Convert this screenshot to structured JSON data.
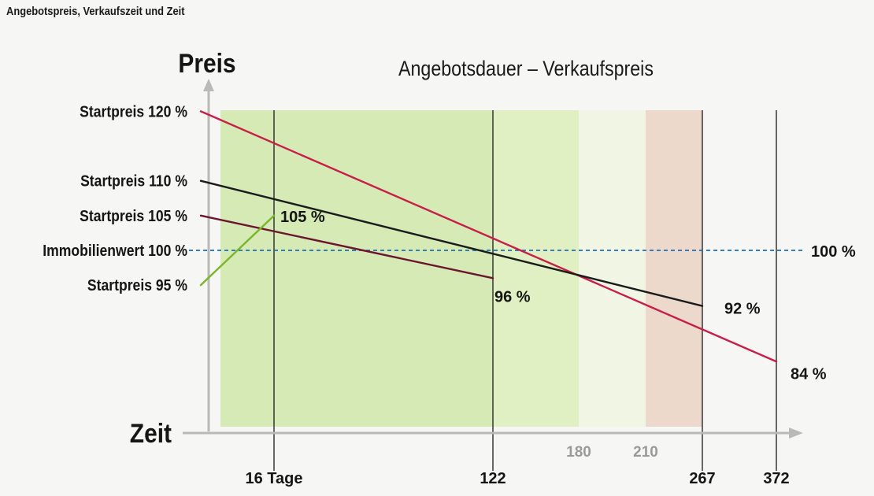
{
  "page_title": "Angebotspreis, Verkaufszeit und Zeit",
  "chart_data": {
    "type": "line",
    "title": "Angebotsdauer – Verkaufspreis",
    "ylabel": "Preis",
    "xlabel": "Zeit",
    "ylim": [
      80,
      122
    ],
    "x_ticks": [
      {
        "value": 16,
        "label": "16 Tage",
        "style": "bold"
      },
      {
        "value": 122,
        "label": "122",
        "style": "bold"
      },
      {
        "value": 180,
        "label": "180",
        "style": "muted"
      },
      {
        "value": 210,
        "label": "210",
        "style": "muted"
      },
      {
        "value": 267,
        "label": "267",
        "style": "bold"
      },
      {
        "value": 372,
        "label": "372",
        "style": "bold"
      }
    ],
    "y_labels": [
      {
        "value": 120,
        "label": "Startpreis 120 %"
      },
      {
        "value": 110,
        "label": "Startpreis 110 %"
      },
      {
        "value": 105,
        "label": "Startpreis 105 %"
      },
      {
        "value": 100,
        "label": "Immobilienwert 100 %"
      },
      {
        "value": 95,
        "label": "Startpreis 95 %"
      }
    ],
    "reference_line": {
      "value": 100,
      "label": "100 %",
      "color": "#1e6fb0",
      "style": "dashed"
    },
    "regions": [
      {
        "from": 16,
        "to": 122,
        "color": "#cfe8a8"
      },
      {
        "from": 122,
        "to": 180,
        "color": "#dcefb8"
      },
      {
        "from": 180,
        "to": 210,
        "color": "#eef6df"
      },
      {
        "from": 210,
        "to": 267,
        "color": "#ead3c4"
      }
    ],
    "series": [
      {
        "color": "#c81e4a",
        "points": [
          [
            0,
            120
          ],
          [
            372,
            84
          ]
        ],
        "end_label": "84 %"
      },
      {
        "color": "#1b1b1b",
        "points": [
          [
            0,
            110
          ],
          [
            267,
            92
          ]
        ],
        "end_label": "92 %"
      },
      {
        "color": "#6b1530",
        "points": [
          [
            0,
            105
          ],
          [
            122,
            96
          ]
        ],
        "end_label": "96 %"
      },
      {
        "color": "#7ab52a",
        "points": [
          [
            0,
            95
          ],
          [
            16,
            105
          ]
        ],
        "end_label": "105 %"
      }
    ],
    "grid": false
  }
}
